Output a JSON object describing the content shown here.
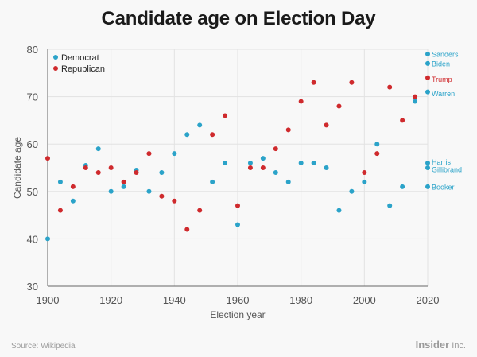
{
  "title": "Candidate age on Election Day",
  "footer": {
    "source": "Source: Wikipedia",
    "brand": "Insider",
    "brand_suffix": "Inc."
  },
  "colors": {
    "democrat": "#2ba3c9",
    "republican": "#cf2a2d",
    "text": "#555555",
    "grid": "#e2e2e2"
  },
  "chart_data": {
    "type": "scatter",
    "title": "Candidate age on Election Day",
    "xlabel": "Election year",
    "ylabel": "Candidate age",
    "xlim": [
      1900,
      2020
    ],
    "ylim": [
      30,
      80
    ],
    "xticks": [
      1900,
      1920,
      1940,
      1960,
      1980,
      2000,
      2020
    ],
    "yticks": [
      30,
      40,
      50,
      60,
      70,
      80
    ],
    "grid": true,
    "legend": "top-left",
    "series": [
      {
        "name": "Democrat",
        "color": "#2ba3c9",
        "points": [
          [
            1900,
            40
          ],
          [
            1904,
            52
          ],
          [
            1908,
            48
          ],
          [
            1912,
            55.5
          ],
          [
            1916,
            59
          ],
          [
            1920,
            50
          ],
          [
            1924,
            51
          ],
          [
            1928,
            54.5
          ],
          [
            1932,
            50
          ],
          [
            1936,
            54
          ],
          [
            1940,
            58
          ],
          [
            1944,
            62
          ],
          [
            1948,
            64
          ],
          [
            1952,
            52
          ],
          [
            1956,
            56
          ],
          [
            1960,
            43
          ],
          [
            1964,
            56
          ],
          [
            1968,
            57
          ],
          [
            1972,
            54
          ],
          [
            1976,
            52
          ],
          [
            1980,
            56
          ],
          [
            1984,
            56
          ],
          [
            1988,
            55
          ],
          [
            1992,
            46
          ],
          [
            1996,
            50
          ],
          [
            2000,
            52
          ],
          [
            2004,
            60
          ],
          [
            2008,
            47
          ],
          [
            2012,
            51
          ],
          [
            2016,
            69
          ]
        ]
      },
      {
        "name": "Republican",
        "color": "#cf2a2d",
        "points": [
          [
            1900,
            57
          ],
          [
            1904,
            46
          ],
          [
            1908,
            51
          ],
          [
            1912,
            55
          ],
          [
            1916,
            54
          ],
          [
            1920,
            55
          ],
          [
            1924,
            52
          ],
          [
            1928,
            54
          ],
          [
            1932,
            58
          ],
          [
            1936,
            49
          ],
          [
            1940,
            48
          ],
          [
            1944,
            42
          ],
          [
            1948,
            46
          ],
          [
            1952,
            62
          ],
          [
            1956,
            66
          ],
          [
            1960,
            47
          ],
          [
            1964,
            55
          ],
          [
            1968,
            55
          ],
          [
            1972,
            59
          ],
          [
            1976,
            63
          ],
          [
            1980,
            69
          ],
          [
            1984,
            73
          ],
          [
            1988,
            64
          ],
          [
            1992,
            68
          ],
          [
            1996,
            73
          ],
          [
            2000,
            54
          ],
          [
            2004,
            58
          ],
          [
            2008,
            72
          ],
          [
            2012,
            65
          ],
          [
            2016,
            70
          ]
        ]
      }
    ],
    "candidates_2020": [
      {
        "name": "Sanders",
        "age": 79,
        "party": "Democrat",
        "label_y": 79
      },
      {
        "name": "Biden",
        "age": 77,
        "party": "Democrat",
        "label_y": 77
      },
      {
        "name": "Trump",
        "age": 74,
        "party": "Republican",
        "label_y": 73.7
      },
      {
        "name": "Warren",
        "age": 71,
        "party": "Democrat",
        "label_y": 70.7
      },
      {
        "name": "Harris",
        "age": 56,
        "party": "Democrat",
        "label_y": 56.3
      },
      {
        "name": "Gillibrand",
        "age": 55,
        "party": "Democrat",
        "label_y": 54.7
      },
      {
        "name": "Booker",
        "age": 51,
        "party": "Democrat",
        "label_y": 51
      }
    ]
  }
}
